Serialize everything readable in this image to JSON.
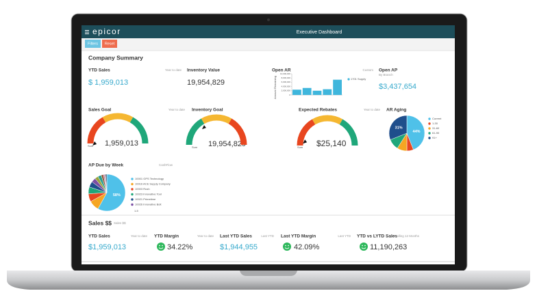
{
  "header": {
    "logo": "epicor",
    "title": "Executive Dashboard"
  },
  "toolbar": {
    "buttons": [
      "Filters",
      "Reset"
    ]
  },
  "company_summary": {
    "title": "Company Summary",
    "ytd_sales": {
      "title": "YTD Sales",
      "period": "Year to date",
      "value": "$ 1,959,013"
    },
    "inventory_value": {
      "title": "Inventory Value",
      "value": "19,954,829"
    },
    "open_ar": {
      "title": "Open AR",
      "period": "Custom",
      "chart": {
        "type": "bar",
        "y_label": "Amount Remaining",
        "categories": [
          null,
          null,
          null,
          null,
          null
        ],
        "series": [
          {
            "name": "1701 Supply",
            "color": "#3fb6dc",
            "values": [
              2500000,
              3300000,
              2000000,
              2700000,
              7200000
            ]
          }
        ],
        "ylim": [
          0,
          10000000
        ],
        "yticks": [
          0,
          {
            "value": 2000000,
            "label": "2,000,000"
          },
          {
            "value": 4000000,
            "label": "4,000,000"
          },
          {
            "value": 6000000,
            "label": "6,000,000"
          },
          {
            "value": 8000000,
            "label": "8,000,000"
          },
          {
            "value": 10000000,
            "label": "10,000,000"
          }
        ]
      }
    },
    "open_ap": {
      "title": "Open AP",
      "period": "By Branch",
      "value": "$3,437,654"
    },
    "sales_goal": {
      "title": "Sales Goal",
      "period": "Year to date",
      "value": "1,959,013",
      "axis_label": "Sum"
    },
    "inventory_goal": {
      "title": "Inventory Goal",
      "value": "19,954,829",
      "axis_label": "Sum"
    },
    "expected_rebates": {
      "title": "Expected Rebates",
      "period": "Year to date",
      "value": "$25,140",
      "axis_label": "Sum"
    },
    "ar_aging": {
      "title": "AR Aging",
      "chart": {
        "type": "pie",
        "categories": [
          "Current",
          "1-30",
          "31-60",
          "61-90",
          "91+"
        ],
        "values": [
          44,
          6,
          9,
          10,
          31
        ],
        "value_labels": [
          "44%",
          null,
          null,
          null,
          "31%"
        ],
        "colors": [
          "#4fc1e9",
          "#e8461f",
          "#f5a623",
          "#1fa77a",
          "#1f4e8c"
        ]
      }
    },
    "ap_due_by_week": {
      "title": "AP Due by Week",
      "period": "CashFlow",
      "pager": "1-5",
      "chart": {
        "type": "pie",
        "categories": [
          "10001 GPS Technology",
          "10016 ACE Supply Company",
          "10003 Rush",
          "10023 Innovative Tool",
          "10021 Primetime",
          "10026 Innovative Bolt",
          null,
          null,
          null,
          null,
          null,
          null
        ],
        "values": [
          58,
          9,
          7,
          6,
          5,
          4,
          3,
          3,
          2,
          1,
          1,
          1
        ],
        "value_labels": [
          "58%",
          null,
          null,
          null,
          null,
          null,
          null,
          null,
          null,
          null,
          null,
          null
        ],
        "colors": [
          "#4fc1e9",
          "#f5a623",
          "#e8461f",
          "#1fa77a",
          "#1f4e8c",
          "#7b4ea3",
          "#9aa43a",
          "#2a9d8f",
          "#8c5a3c",
          "#d46a9f",
          "#888888",
          "#334466"
        ]
      }
    }
  },
  "sales": {
    "title": "Sales $$",
    "subtitle": "Sales $$",
    "ytd_sales": {
      "title": "YTD Sales",
      "period": "Year to date",
      "value": "$1,959,013"
    },
    "ytd_margin": {
      "title": "YTD Margin",
      "period": "Year to date",
      "value": "34.22%"
    },
    "last_ytd_sales": {
      "title": "Last YTD Sales",
      "period": "Last YTD",
      "value": "$1,944,955"
    },
    "last_ytd_margin": {
      "title": "Last YTD Margin",
      "period": "Last YTD",
      "value": "42.09%"
    },
    "ytd_vs_lytd": {
      "title": "YTD vs LYTD Sales",
      "period": "Rolling 12 Months",
      "value": "11,190,263"
    }
  }
}
